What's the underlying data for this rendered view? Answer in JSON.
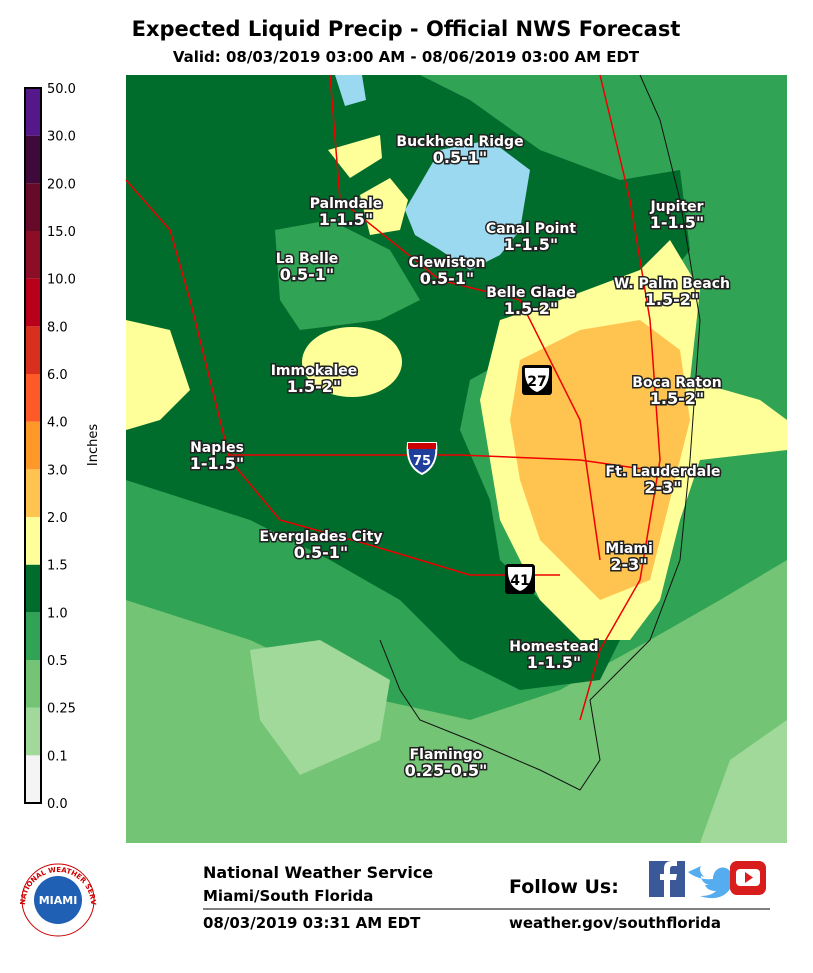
{
  "header": {
    "title": "Expected Liquid Precip - Official NWS Forecast",
    "valid": "Valid: 08/03/2019 03:00 AM - 08/06/2019 03:00 AM EDT"
  },
  "legend": {
    "unit": "Inches",
    "labels": [
      "0.0",
      "0.1",
      "0.25",
      "0.5",
      "1.0",
      "1.5",
      "2.0",
      "3.0",
      "4.0",
      "6.0",
      "8.0",
      "10.0",
      "15.0",
      "20.0",
      "30.0",
      "50.0"
    ]
  },
  "map": {
    "places": [
      {
        "name": "Buckhead Ridge",
        "amount": "0.5-1\""
      },
      {
        "name": "Palmdale",
        "amount": "1-1.5\""
      },
      {
        "name": "Jupiter",
        "amount": "1-1.5\""
      },
      {
        "name": "Canal Point",
        "amount": "1-1.5\""
      },
      {
        "name": "La Belle",
        "amount": "0.5-1\""
      },
      {
        "name": "Clewiston",
        "amount": "0.5-1\""
      },
      {
        "name": "Belle Glade",
        "amount": "1.5-2\""
      },
      {
        "name": "W. Palm Beach",
        "amount": "1.5-2\""
      },
      {
        "name": "Immokalee",
        "amount": "1.5-2\""
      },
      {
        "name": "Boca Raton",
        "amount": "1.5-2\""
      },
      {
        "name": "Naples",
        "amount": "1-1.5\""
      },
      {
        "name": "Ft. Lauderdale",
        "amount": "2-3\""
      },
      {
        "name": "Everglades City",
        "amount": "0.5-1\""
      },
      {
        "name": "Miami",
        "amount": "2-3\""
      },
      {
        "name": "Homestead",
        "amount": "1-1.5\""
      },
      {
        "name": "Flamingo",
        "amount": "0.25-0.5\""
      }
    ],
    "highways": [
      "27",
      "75",
      "41"
    ]
  },
  "footer": {
    "agency": "National Weather Service",
    "office": "Miami/South Florida",
    "issued": "08/03/2019 03:31 AM EDT",
    "follow": "Follow Us:",
    "url": "weather.gov/southflorida",
    "logo_ring": "NATIONAL WEATHER SERVICE",
    "logo_center": "MIAMI"
  }
}
